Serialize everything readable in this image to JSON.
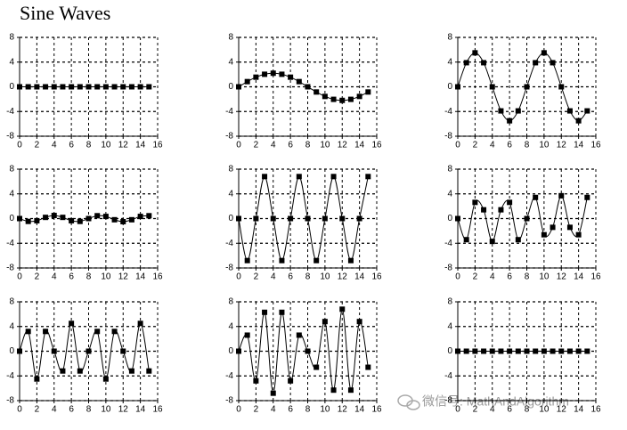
{
  "title": "Sine Waves",
  "watermark": "微信号: MathAndAlgorithm",
  "chart_data": [
    {
      "type": "line",
      "x": [
        0,
        1,
        2,
        3,
        4,
        5,
        6,
        7,
        8,
        9,
        10,
        11,
        12,
        13,
        14,
        15
      ],
      "values": [
        0,
        0,
        0,
        0,
        0,
        0,
        0,
        0,
        0,
        0,
        0,
        0,
        0,
        0,
        0,
        0
      ],
      "color": "#000000",
      "markers": true,
      "grid": true,
      "xlim": [
        0,
        16
      ],
      "ylim": [
        -8,
        8
      ],
      "xticks": [
        0,
        2,
        4,
        6,
        8,
        10,
        12,
        14,
        16
      ],
      "yticks": [
        -8,
        -4,
        0,
        4,
        8
      ]
    },
    {
      "type": "line",
      "x": [
        0,
        1,
        2,
        3,
        4,
        5,
        6,
        7,
        8,
        9,
        10,
        11,
        12,
        13,
        14,
        15
      ],
      "values": [
        0,
        0.84,
        1.56,
        2.03,
        2.2,
        2.03,
        1.56,
        0.84,
        0,
        -0.84,
        -1.56,
        -2.03,
        -2.2,
        -2.03,
        -1.56,
        -0.84
      ],
      "color": "#000000",
      "markers": true,
      "grid": true,
      "xlim": [
        0,
        16
      ],
      "ylim": [
        -8,
        8
      ],
      "xticks": [
        0,
        2,
        4,
        6,
        8,
        10,
        12,
        14,
        16
      ],
      "yticks": [
        -8,
        -4,
        0,
        4,
        8
      ]
    },
    {
      "type": "line",
      "x": [
        0,
        1,
        2,
        3,
        4,
        5,
        6,
        7,
        8,
        9,
        10,
        11,
        12,
        13,
        14,
        15
      ],
      "values": [
        0,
        3.9,
        5.5,
        3.9,
        0,
        -3.9,
        -5.5,
        -3.9,
        0,
        3.9,
        5.5,
        3.9,
        0,
        -3.9,
        -5.5,
        -3.9
      ],
      "color": "#000000",
      "markers": true,
      "grid": true,
      "xlim": [
        0,
        16
      ],
      "ylim": [
        -8,
        8
      ],
      "xticks": [
        0,
        2,
        4,
        6,
        8,
        10,
        12,
        14,
        16
      ],
      "yticks": [
        -8,
        -4,
        0,
        4,
        8
      ]
    },
    {
      "type": "line",
      "x": [
        0,
        1,
        2,
        3,
        4,
        5,
        6,
        7,
        8,
        9,
        10,
        11,
        12,
        13,
        14,
        15
      ],
      "values": [
        0,
        -0.46,
        -0.35,
        0.19,
        0.5,
        0.19,
        -0.35,
        -0.46,
        0,
        0.46,
        0.35,
        -0.19,
        -0.5,
        -0.19,
        0.35,
        0.46
      ],
      "color": "#000000",
      "markers": true,
      "grid": true,
      "xlim": [
        0,
        16
      ],
      "ylim": [
        -8,
        8
      ],
      "xticks": [
        0,
        2,
        4,
        6,
        8,
        10,
        12,
        14,
        16
      ],
      "yticks": [
        -8,
        -4,
        0,
        4,
        8
      ]
    },
    {
      "type": "line",
      "x": [
        0,
        1,
        2,
        3,
        4,
        5,
        6,
        7,
        8,
        9,
        10,
        11,
        12,
        13,
        14,
        15
      ],
      "values": [
        0,
        -6.8,
        0,
        6.8,
        0,
        -6.8,
        0,
        6.8,
        0,
        -6.8,
        0,
        6.8,
        0,
        -6.8,
        0,
        6.8
      ],
      "color": "#000000",
      "markers": true,
      "grid": true,
      "xlim": [
        0,
        16
      ],
      "ylim": [
        -8,
        8
      ],
      "xticks": [
        0,
        2,
        4,
        6,
        8,
        10,
        12,
        14,
        16
      ],
      "yticks": [
        -8,
        -4,
        0,
        4,
        8
      ]
    },
    {
      "type": "line",
      "x": [
        0,
        1,
        2,
        3,
        4,
        5,
        6,
        7,
        8,
        9,
        10,
        11,
        12,
        13,
        14,
        15
      ],
      "values": [
        0,
        -3.42,
        2.62,
        1.42,
        -3.7,
        1.42,
        2.62,
        -3.42,
        0,
        3.42,
        -2.62,
        -1.42,
        3.7,
        -1.42,
        -2.62,
        3.42
      ],
      "color": "#000000",
      "markers": true,
      "grid": true,
      "xlim": [
        0,
        16
      ],
      "ylim": [
        -8,
        8
      ],
      "xticks": [
        0,
        2,
        4,
        6,
        8,
        10,
        12,
        14,
        16
      ],
      "yticks": [
        -8,
        -4,
        0,
        4,
        8
      ]
    },
    {
      "type": "line",
      "x": [
        0,
        1,
        2,
        3,
        4,
        5,
        6,
        7,
        8,
        9,
        10,
        11,
        12,
        13,
        14,
        15
      ],
      "values": [
        0,
        3.2,
        -4.5,
        3.2,
        0,
        -3.2,
        4.5,
        -3.2,
        0,
        3.2,
        -4.5,
        3.2,
        0,
        -3.2,
        4.5,
        -3.2
      ],
      "color": "#000000",
      "markers": true,
      "grid": true,
      "xlim": [
        0,
        16
      ],
      "ylim": [
        -8,
        8
      ],
      "xticks": [
        0,
        2,
        4,
        6,
        8,
        10,
        12,
        14,
        16
      ],
      "yticks": [
        -8,
        -4,
        0,
        4,
        8
      ]
    },
    {
      "type": "line",
      "x": [
        0,
        1,
        2,
        3,
        4,
        5,
        6,
        7,
        8,
        9,
        10,
        11,
        12,
        13,
        14,
        15
      ],
      "values": [
        0,
        2.6,
        -4.8,
        6.3,
        -6.8,
        6.3,
        -4.8,
        2.6,
        0,
        -2.6,
        4.8,
        -6.3,
        6.8,
        -6.3,
        4.8,
        -2.6
      ],
      "color": "#000000",
      "markers": true,
      "grid": true,
      "xlim": [
        0,
        16
      ],
      "ylim": [
        -8,
        8
      ],
      "xticks": [
        0,
        2,
        4,
        6,
        8,
        10,
        12,
        14,
        16
      ],
      "yticks": [
        -8,
        -4,
        0,
        4,
        8
      ]
    },
    {
      "type": "line",
      "x": [
        0,
        1,
        2,
        3,
        4,
        5,
        6,
        7,
        8,
        9,
        10,
        11,
        12,
        13,
        14,
        15
      ],
      "values": [
        0,
        0,
        0,
        0,
        0,
        0,
        0,
        0,
        0,
        0,
        0,
        0,
        0,
        0,
        0,
        0
      ],
      "color": "#000000",
      "markers": true,
      "grid": true,
      "xlim": [
        0,
        16
      ],
      "ylim": [
        -8,
        8
      ],
      "xticks": [
        0,
        2,
        4,
        6,
        8,
        10,
        12,
        14,
        16
      ],
      "yticks": [
        -8,
        -4,
        0,
        4,
        8
      ]
    }
  ]
}
